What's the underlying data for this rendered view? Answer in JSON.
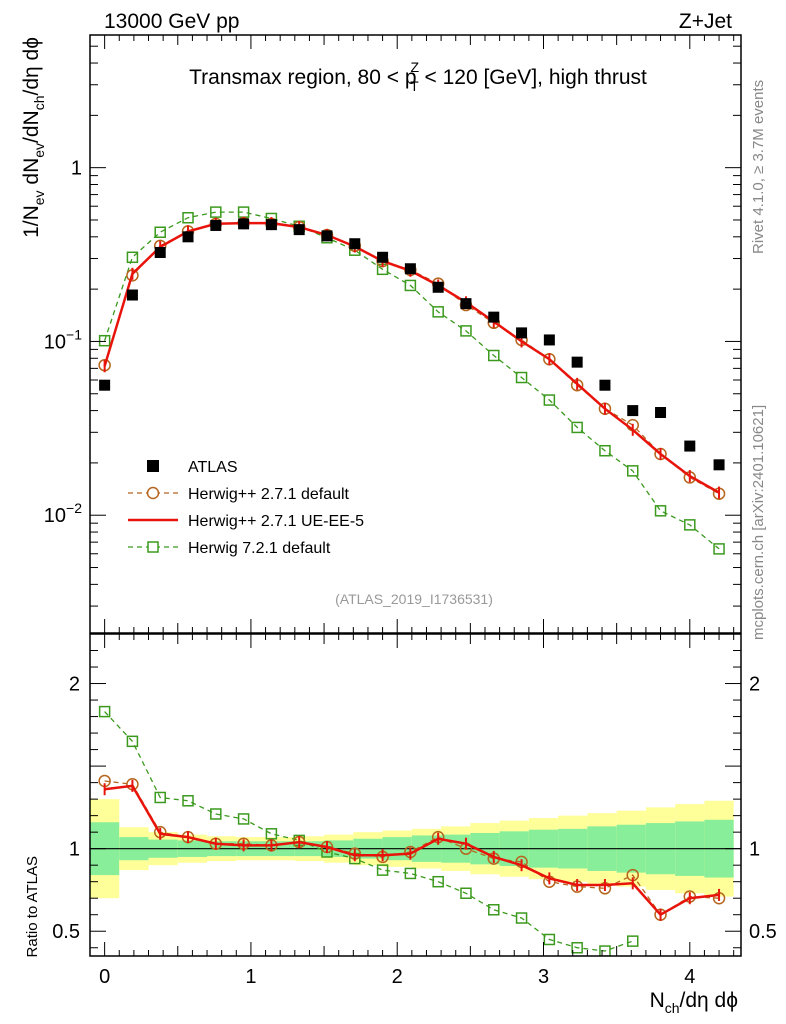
{
  "header": {
    "left": "13000 GeV pp",
    "right": "Z+Jet"
  },
  "side_labels": {
    "rivet": "Rivet 4.1.0, ≥ 3.7M events",
    "mcplots": "mcplots.cern.ch [arXiv:2401.10621]"
  },
  "chart_data": [
    {
      "type": "scatter",
      "panel": "main",
      "title_parts": [
        "Transmax region, 80 < p",
        "Z",
        "T",
        " < 120 [GeV], high thrust"
      ],
      "ylabel_parts": [
        "1/N",
        "ev",
        " dN",
        "ev",
        "/dN",
        "ch",
        "/dη dϕ"
      ],
      "yscale": "log",
      "ylim": [
        0.0021,
        5.8
      ],
      "xlim": [
        -0.1,
        4.35
      ],
      "yticks": [
        {
          "base": "10",
          "exp": "−2",
          "value": 0.01
        },
        {
          "base": "10",
          "exp": "−1",
          "value": 0.1
        },
        {
          "base": "1",
          "exp": "",
          "value": 1
        }
      ],
      "analysis_label": "(ATLAS_2019_I1736531)",
      "legend_position": "bottom-left",
      "x": [
        0.0,
        0.19,
        0.38,
        0.57,
        0.76,
        0.95,
        1.14,
        1.33,
        1.52,
        1.71,
        1.9,
        2.09,
        2.28,
        2.47,
        2.66,
        2.85,
        3.04,
        3.23,
        3.42,
        3.61,
        3.8,
        4.0,
        4.2
      ],
      "series": [
        {
          "name": "ATLAS",
          "style": "data",
          "color": "#000000",
          "values": [
            0.056,
            0.185,
            0.325,
            0.4,
            0.465,
            0.475,
            0.47,
            0.44,
            0.405,
            0.365,
            0.305,
            0.262,
            0.205,
            0.165,
            0.138,
            0.112,
            0.102,
            0.076,
            0.056,
            0.04,
            0.039,
            0.025,
            0.0195
          ]
        },
        {
          "name": "Herwig++ 2.7.1 default",
          "style": "circles",
          "color": "#b5651d",
          "values": [
            0.073,
            0.24,
            0.355,
            0.43,
            0.475,
            0.48,
            0.475,
            0.455,
            0.41,
            0.355,
            0.29,
            0.258,
            0.215,
            0.162,
            0.128,
            0.102,
            0.079,
            0.056,
            0.041,
            0.033,
            0.0225,
            0.0165,
            0.0133
          ]
        },
        {
          "name": "Herwig++ 2.7.1 UE-EE-5",
          "style": "line",
          "color": "#e8140c",
          "values": [
            0.072,
            0.245,
            0.35,
            0.43,
            0.475,
            0.48,
            0.48,
            0.455,
            0.41,
            0.352,
            0.29,
            0.255,
            0.21,
            0.168,
            0.13,
            0.1,
            0.079,
            0.057,
            0.041,
            0.031,
            0.0225,
            0.0168,
            0.0135
          ]
        },
        {
          "name": "Herwig 7.2.1 default",
          "style": "squares",
          "color": "#3b9a1e",
          "values": [
            0.101,
            0.305,
            0.425,
            0.515,
            0.555,
            0.555,
            0.51,
            0.46,
            0.395,
            0.335,
            0.26,
            0.21,
            0.148,
            0.115,
            0.083,
            0.062,
            0.046,
            0.032,
            0.0235,
            0.018,
            0.0106,
            0.0088,
            0.0064
          ]
        }
      ]
    },
    {
      "type": "scatter",
      "panel": "ratio",
      "ylabel": "Ratio to ATLAS",
      "yscale": "linear",
      "ylim": [
        0.35,
        2.3
      ],
      "xlim": [
        -0.1,
        4.35
      ],
      "xlabel_parts": [
        "N",
        "ch",
        "/dη dϕ"
      ],
      "xticks": [
        0,
        1,
        2,
        3,
        4
      ],
      "yticks": [
        0.5,
        1,
        2
      ],
      "reference_line": 1,
      "band_edges": [
        -0.1,
        0.1,
        0.3,
        0.5,
        0.7,
        0.9,
        1.1,
        1.3,
        1.5,
        1.7,
        1.9,
        2.1,
        2.3,
        2.5,
        2.7,
        2.9,
        3.1,
        3.3,
        3.5,
        3.7,
        3.9,
        4.1,
        4.3
      ],
      "band_green": [
        0.16,
        0.07,
        0.055,
        0.05,
        0.045,
        0.045,
        0.045,
        0.045,
        0.05,
        0.06,
        0.07,
        0.08,
        0.085,
        0.095,
        0.105,
        0.115,
        0.12,
        0.135,
        0.145,
        0.155,
        0.165,
        0.175
      ],
      "band_yellow": [
        0.3,
        0.13,
        0.1,
        0.085,
        0.075,
        0.07,
        0.07,
        0.075,
        0.085,
        0.1,
        0.11,
        0.12,
        0.135,
        0.155,
        0.17,
        0.185,
        0.2,
        0.215,
        0.23,
        0.25,
        0.27,
        0.29
      ],
      "series": [
        {
          "name": "Herwig++ 2.7.1 default",
          "style": "circles",
          "color": "#b5651d",
          "values": [
            1.41,
            1.39,
            1.1,
            1.07,
            1.03,
            1.03,
            1.02,
            1.04,
            1.01,
            0.97,
            0.95,
            0.98,
            1.07,
            1.0,
            0.94,
            0.92,
            0.8,
            0.77,
            0.76,
            0.84,
            0.6,
            0.71,
            0.7
          ]
        },
        {
          "name": "Herwig++ 2.7.1 UE-EE-5",
          "style": "line",
          "color": "#e8140c",
          "values": [
            1.36,
            1.38,
            1.09,
            1.07,
            1.03,
            1.02,
            1.02,
            1.04,
            1.01,
            0.96,
            0.96,
            0.97,
            1.06,
            1.03,
            0.95,
            0.9,
            0.82,
            0.78,
            0.78,
            0.79,
            0.6,
            0.7,
            0.72
          ]
        },
        {
          "name": "Herwig 7.2.1 default",
          "style": "squares",
          "color": "#3b9a1e",
          "values": [
            1.83,
            1.65,
            1.31,
            1.29,
            1.21,
            1.18,
            1.09,
            1.05,
            0.98,
            0.94,
            0.87,
            0.85,
            0.8,
            0.73,
            0.63,
            0.58,
            0.45,
            0.4,
            0.38,
            0.44
          ]
        }
      ]
    }
  ]
}
